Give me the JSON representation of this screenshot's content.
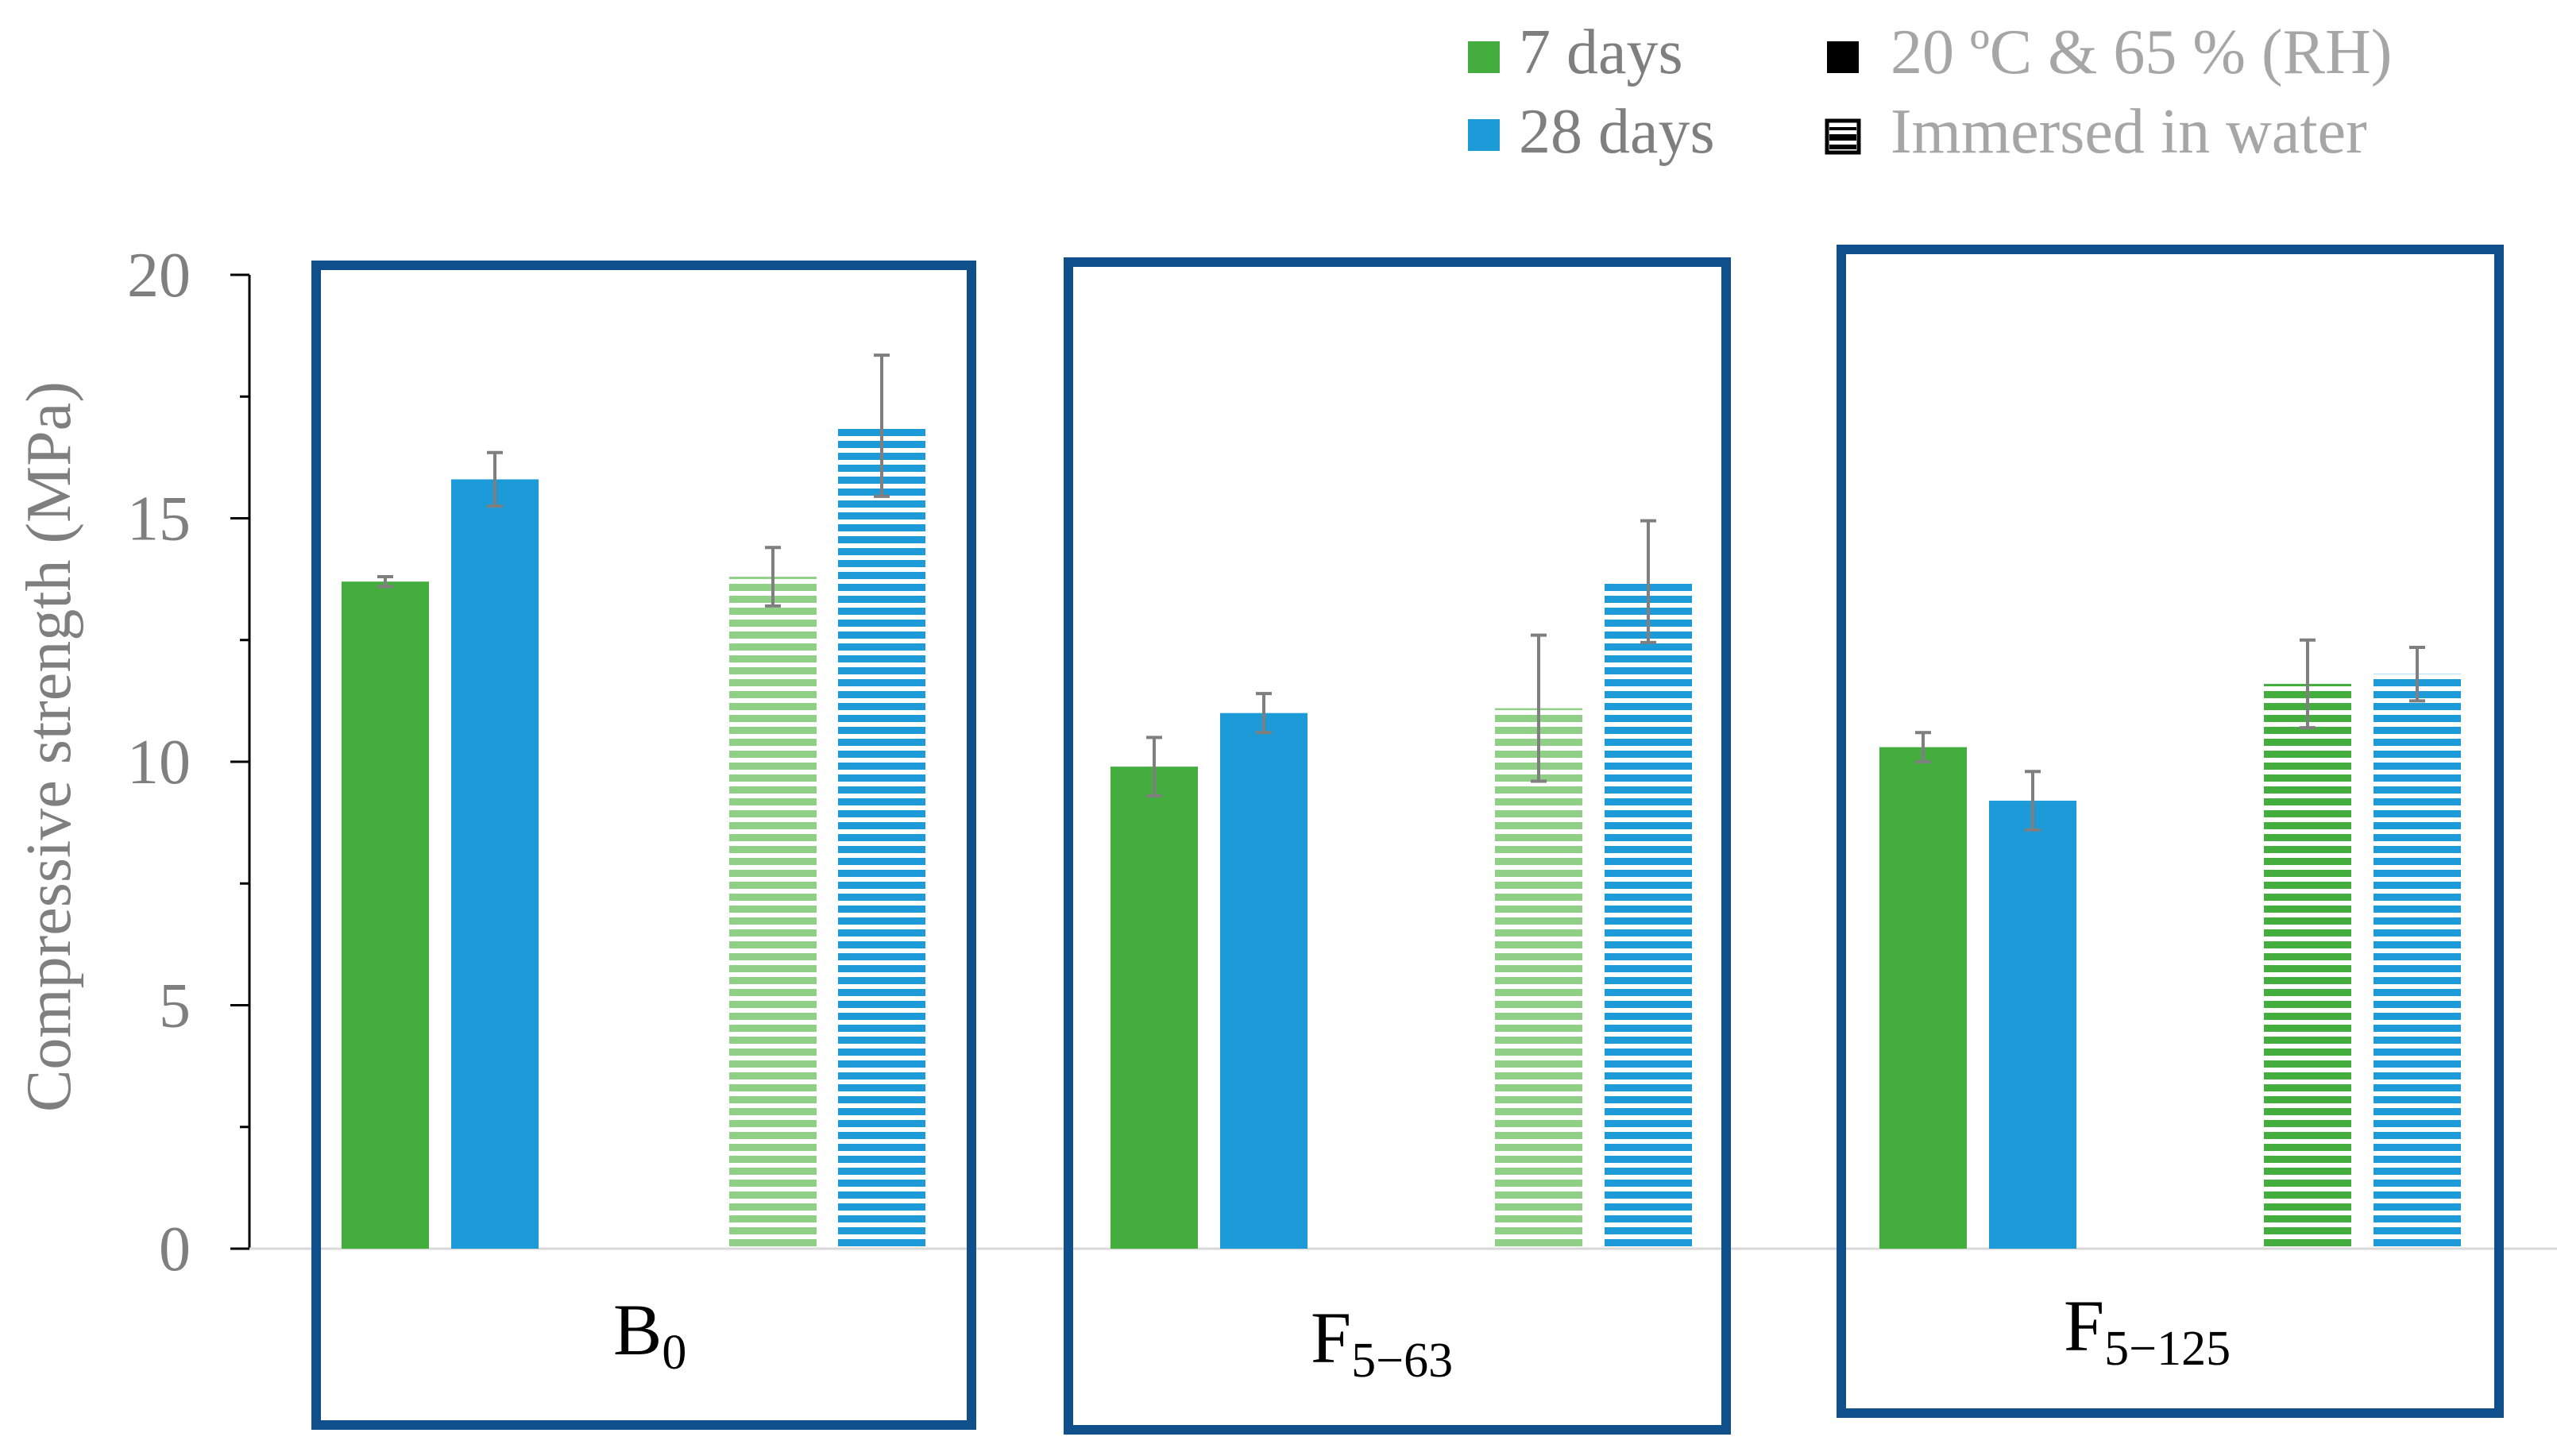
{
  "legend": {
    "items": [
      {
        "label": "7 days",
        "color": "#43AE3D",
        "icon": "solid-swatch"
      },
      {
        "label": "28 days",
        "color": "#1C9BD8",
        "icon": "solid-swatch"
      },
      {
        "label": "20 ºC & 65 % (RH)",
        "color": "#000000",
        "icon": "solid-swatch"
      },
      {
        "label": "Immersed in water",
        "color": "#000000",
        "icon": "striped-swatch"
      }
    ]
  },
  "chart_data": {
    "type": "bar",
    "ylabel": "Compressive strength (MPa)",
    "ylim": [
      0,
      20
    ],
    "yticks": [
      "0",
      "5",
      "10",
      "15",
      "20"
    ],
    "groups": [
      {
        "name": "B",
        "subscript": "0"
      },
      {
        "name": "F",
        "subscript": "5−63"
      },
      {
        "name": "F",
        "subscript": "5−125"
      }
    ],
    "series": [
      {
        "name": "7 days, 20 ºC & 65 % (RH)",
        "age": "7 days",
        "curing": "20 ºC & 65 % (RH)",
        "values": [
          13.7,
          9.9,
          10.3
        ],
        "errors": [
          0.1,
          0.6,
          0.3
        ]
      },
      {
        "name": "28 days, 20 ºC & 65 % (RH)",
        "age": "28 days",
        "curing": "20 ºC & 65 % (RH)",
        "values": [
          15.8,
          11.0,
          9.2
        ],
        "errors": [
          0.55,
          0.4,
          0.6
        ]
      },
      {
        "name": "7 days, Immersed in water",
        "age": "7 days",
        "curing": "Immersed in water",
        "values": [
          13.8,
          11.1,
          11.6
        ],
        "errors": [
          0.6,
          1.5,
          0.9
        ]
      },
      {
        "name": "28 days, Immersed in water",
        "age": "28 days",
        "curing": "Immersed in water",
        "values": [
          16.9,
          13.7,
          11.8
        ],
        "errors": [
          1.45,
          1.25,
          0.55
        ]
      }
    ],
    "colors": {
      "green": "#43AE3D",
      "green_light": "#8FCF86",
      "blue": "#1C9BD8",
      "frame": "#0F4F8C",
      "axis_text": "#7F7F7F",
      "error_bar": "#7F7F7F"
    },
    "grid": false,
    "legend_position": "top-right"
  }
}
